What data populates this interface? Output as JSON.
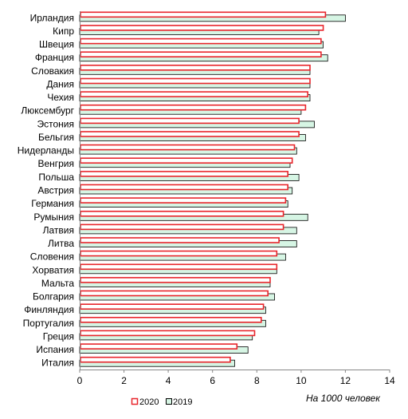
{
  "chart_data": {
    "type": "bar",
    "orientation": "horizontal",
    "categories": [
      "Ирландия",
      "Кипр",
      "Швеция",
      "Франция",
      "Словакия",
      "Дания",
      "Чехия",
      "Люксембург",
      "Эстония",
      "Бельгия",
      "Нидерланды",
      "Венгрия",
      "Польша",
      "Австрия",
      "Германия",
      "Румыния",
      "Латвия",
      "Литва",
      "Словения",
      "Хорватия",
      "Мальта",
      "Болгария",
      "Финляндия",
      "Португалия",
      "Греция",
      "Испания",
      "Италия"
    ],
    "series": [
      {
        "name": "2020",
        "color": "#e8252b",
        "fill": "#ffffff",
        "values": [
          11.1,
          11.0,
          10.9,
          10.9,
          10.4,
          10.4,
          10.3,
          10.2,
          9.9,
          9.9,
          9.7,
          9.6,
          9.4,
          9.4,
          9.3,
          9.2,
          9.2,
          9.0,
          8.9,
          8.9,
          8.6,
          8.5,
          8.3,
          8.2,
          7.9,
          7.1,
          6.8
        ]
      },
      {
        "name": "2019",
        "color": "#000000",
        "fill": "#d6f5e4",
        "values": [
          12.0,
          10.8,
          11.0,
          11.2,
          10.4,
          10.4,
          10.4,
          10.0,
          10.6,
          10.2,
          9.8,
          9.5,
          9.9,
          9.6,
          9.4,
          10.3,
          9.8,
          9.8,
          9.3,
          8.9,
          8.6,
          8.8,
          8.4,
          8.4,
          7.8,
          7.6,
          7.0
        ]
      }
    ],
    "xlim": [
      0,
      14
    ],
    "xticks": [
      "0",
      "2",
      "4",
      "6",
      "8",
      "10",
      "12",
      "14"
    ],
    "unit_label": "На 1000 человек",
    "legend_position": "bottom-center",
    "grid": false
  }
}
